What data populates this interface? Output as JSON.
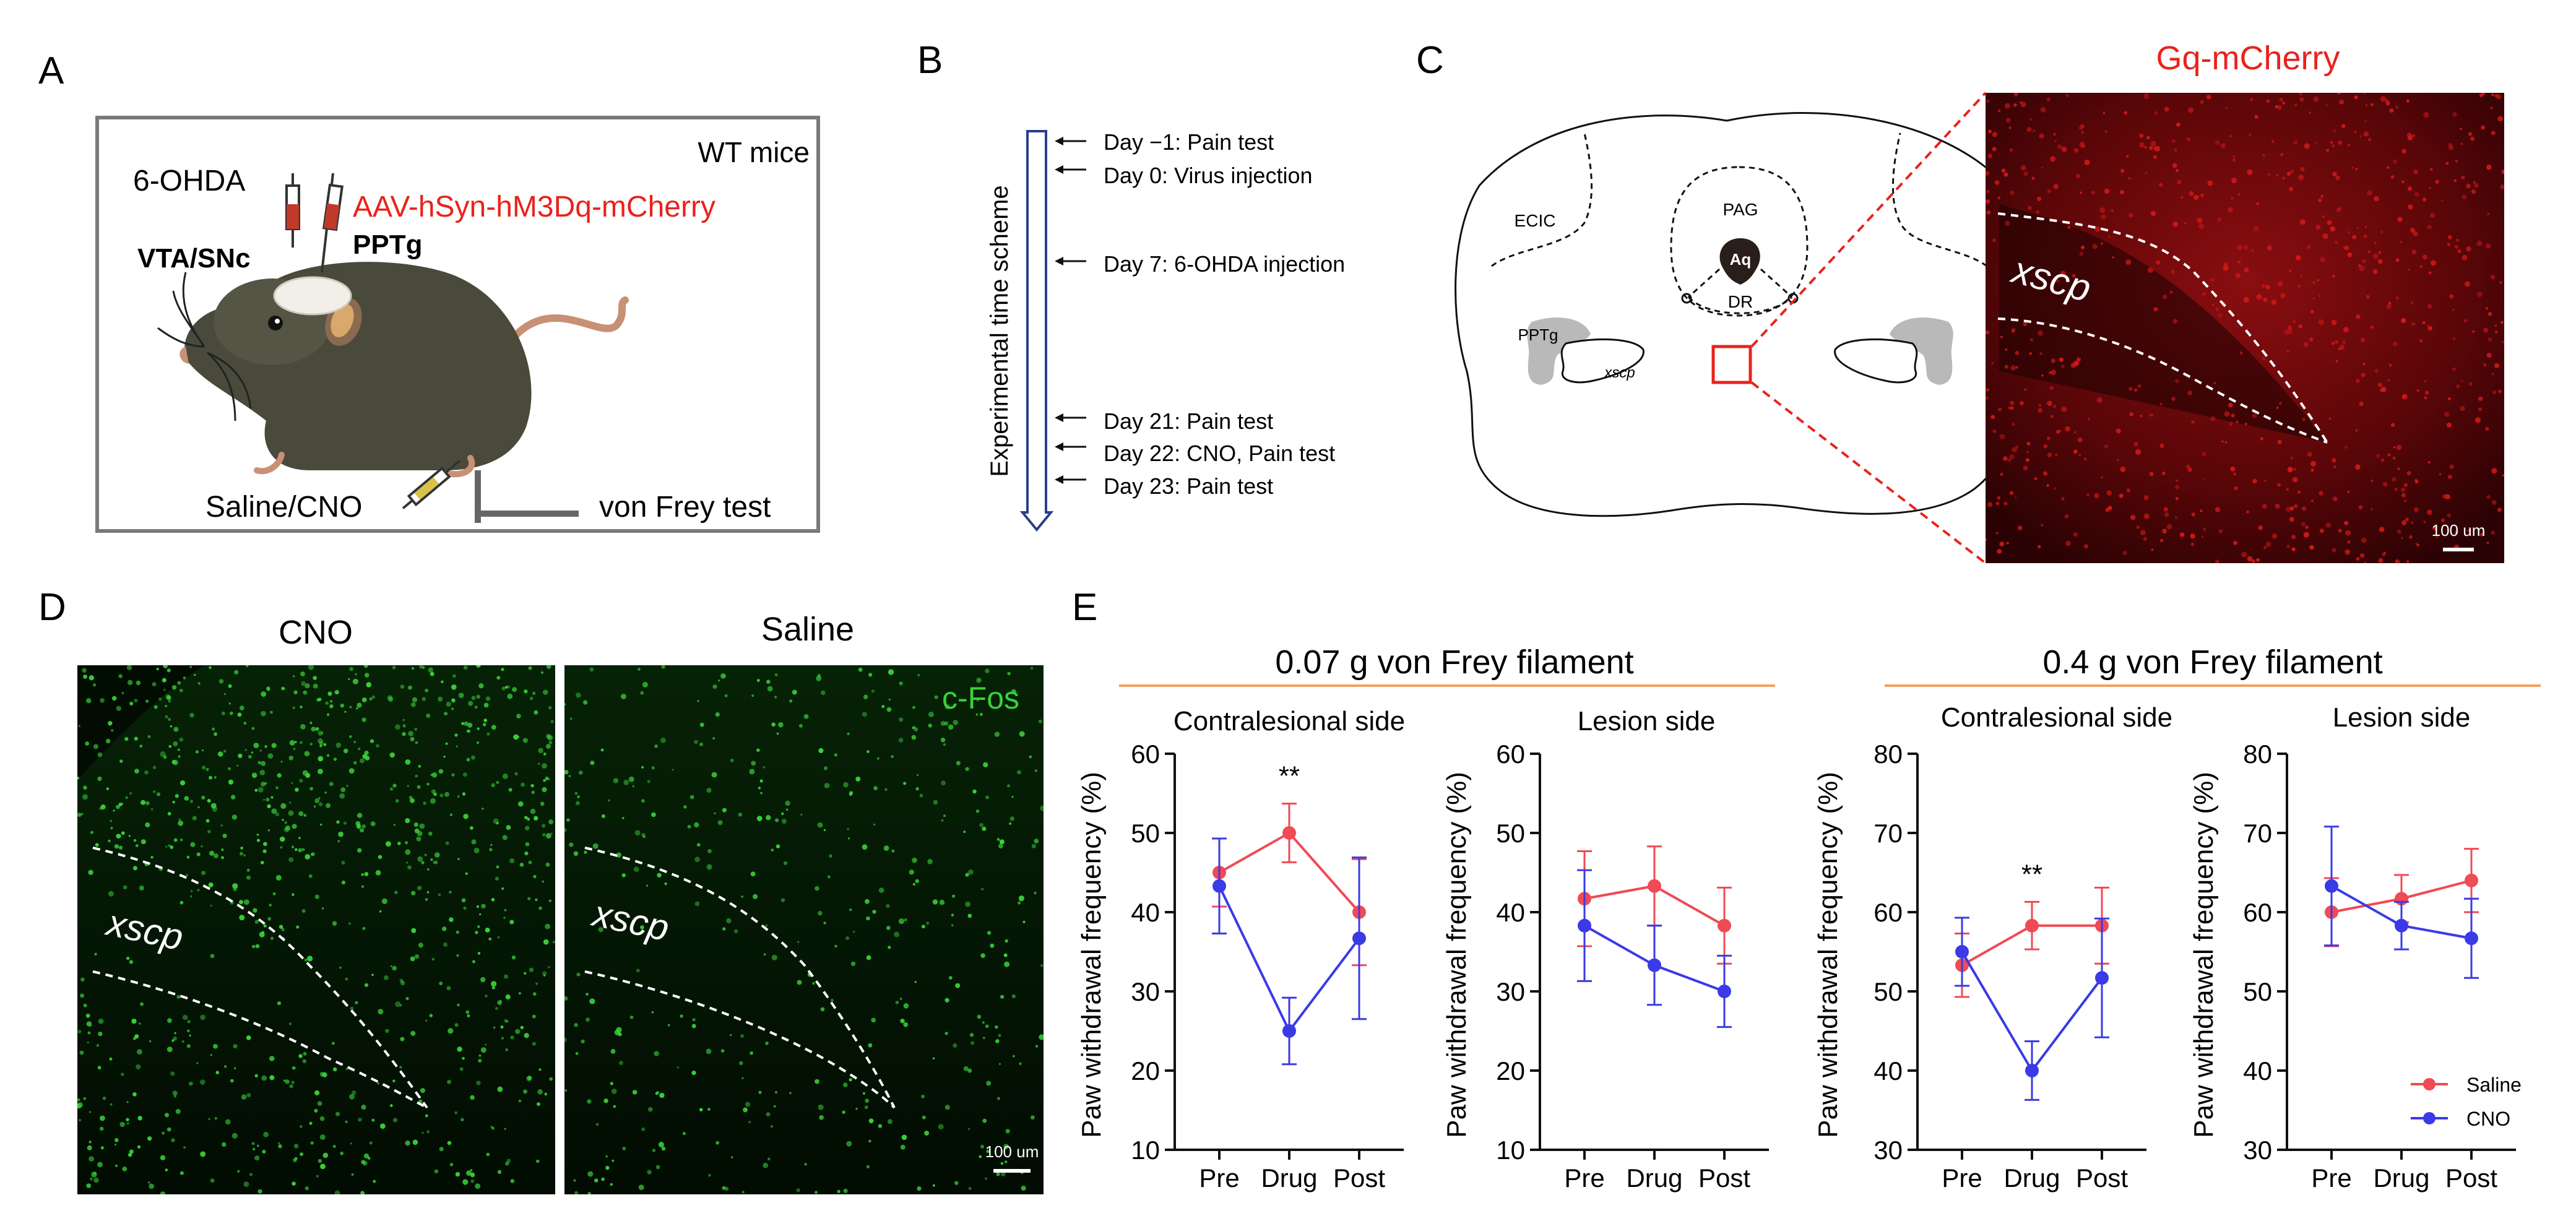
{
  "panels": {
    "A": "A",
    "B": "B",
    "C": "C",
    "D": "D",
    "E": "E"
  },
  "panel_a": {
    "box_label": "WT mice",
    "ohda_label": "6-OHDA",
    "vta_label": "VTA/SNc",
    "virus_label": "AAV-hSyn-hM3Dq-mCherry",
    "pptg_label": "PPTg",
    "saline_label": "Saline/CNO",
    "vonfrey_label": "von Frey test",
    "colors": {
      "virus": "#e8231c",
      "mouse_body": "#4a4a3c",
      "mouse_skin": "#c89075",
      "frame": "#7a7a7a"
    }
  },
  "panel_b": {
    "axis_label": "Experimental time scheme",
    "events": [
      "Day −1:  Pain test",
      "Day 0: Virus injection",
      "Day 7: 6-OHDA injection",
      "Day 21: Pain test",
      "Day 22: CNO, Pain test",
      "Day 23: Pain test"
    ],
    "colors": {
      "arrow": "#2a3f8a"
    }
  },
  "panel_c": {
    "title": "Gq-mCherry",
    "labels": {
      "ecic": "ECIC",
      "pag": "PAG",
      "aq": "Aq",
      "dr": "DR",
      "pptg": "PPTg",
      "xscp_small": "xscp",
      "xscp_large": "xscp"
    },
    "scale_bar": "100 um",
    "colors": {
      "title": "#e8231c",
      "guide": "#e8231c",
      "micro_bg": "#2a0405",
      "signal": "#d01818"
    }
  },
  "panel_d": {
    "cno_title": "CNO",
    "saline_title": "Saline",
    "stain_label": "c-Fos",
    "xscp_cno": "xscp",
    "xscp_saline": "xscp",
    "scale_bar": "100 um",
    "colors": {
      "micro_bg": "#031203",
      "signal": "#3ad13a",
      "stain_label": "#3ad13a"
    }
  },
  "panel_e": {
    "group1_title": "0.07 g von Frey filament",
    "group2_title": "0.4 g von Frey filament",
    "colors": {
      "saline": "#f04a55",
      "cno": "#3a3ae6",
      "rule": "#f0a060"
    }
  },
  "chart_data": [
    {
      "type": "line",
      "title": "Contralesional side",
      "group": "0.07 g von Frey filament",
      "xlabel": "",
      "ylabel": "Paw withdrawal frequency (%)",
      "categories": [
        "Pre",
        "Drug",
        "Post"
      ],
      "ylim": [
        10,
        60
      ],
      "yticks": [
        10,
        20,
        30,
        40,
        50,
        60
      ],
      "annotation": {
        "text": "**",
        "category": "Drug"
      },
      "series": [
        {
          "name": "Saline",
          "values": [
            45,
            50,
            40
          ],
          "errors": [
            4.3,
            3.7,
            6.7
          ]
        },
        {
          "name": "CNO",
          "values": [
            43.3,
            25,
            36.7
          ],
          "errors": [
            6,
            4.2,
            10.2
          ]
        }
      ]
    },
    {
      "type": "line",
      "title": "Lesion side",
      "group": "0.07 g von Frey filament",
      "xlabel": "",
      "ylabel": "Paw withdrawal frequency (%)",
      "categories": [
        "Pre",
        "Drug",
        "Post"
      ],
      "ylim": [
        10,
        60
      ],
      "yticks": [
        10,
        20,
        30,
        40,
        50,
        60
      ],
      "series": [
        {
          "name": "Saline",
          "values": [
            41.7,
            43.3,
            38.3
          ],
          "errors": [
            6,
            5,
            4.8
          ]
        },
        {
          "name": "CNO",
          "values": [
            38.3,
            33.3,
            30
          ],
          "errors": [
            7,
            5,
            4.5
          ]
        }
      ]
    },
    {
      "type": "line",
      "title": "Contralesional side",
      "group": "0.4 g von Frey filament",
      "xlabel": "",
      "ylabel": "Paw withdrawal frequency (%)",
      "categories": [
        "Pre",
        "Drug",
        "Post"
      ],
      "ylim": [
        30,
        80
      ],
      "yticks": [
        30,
        40,
        50,
        60,
        70,
        80
      ],
      "annotation": {
        "text": "**",
        "category": "Drug"
      },
      "series": [
        {
          "name": "Saline",
          "values": [
            53.3,
            58.3,
            58.3
          ],
          "errors": [
            4,
            3,
            4.8
          ]
        },
        {
          "name": "CNO",
          "values": [
            55,
            40,
            51.7
          ],
          "errors": [
            4.3,
            3.7,
            7.5
          ]
        }
      ]
    },
    {
      "type": "line",
      "title": "Lesion side",
      "group": "0.4 g von Frey filament",
      "xlabel": "",
      "ylabel": "Paw withdrawal frequency (%)",
      "categories": [
        "Pre",
        "Drug",
        "Post"
      ],
      "ylim": [
        30,
        80
      ],
      "yticks": [
        30,
        40,
        50,
        60,
        70,
        80
      ],
      "legend": {
        "position": "bottom-right",
        "entries": [
          "Saline",
          "CNO"
        ]
      },
      "series": [
        {
          "name": "Saline",
          "values": [
            60,
            61.7,
            64
          ],
          "errors": [
            4.3,
            3,
            4
          ]
        },
        {
          "name": "CNO",
          "values": [
            63.3,
            58.3,
            56.7
          ],
          "errors": [
            7.5,
            3,
            5
          ]
        }
      ]
    }
  ]
}
